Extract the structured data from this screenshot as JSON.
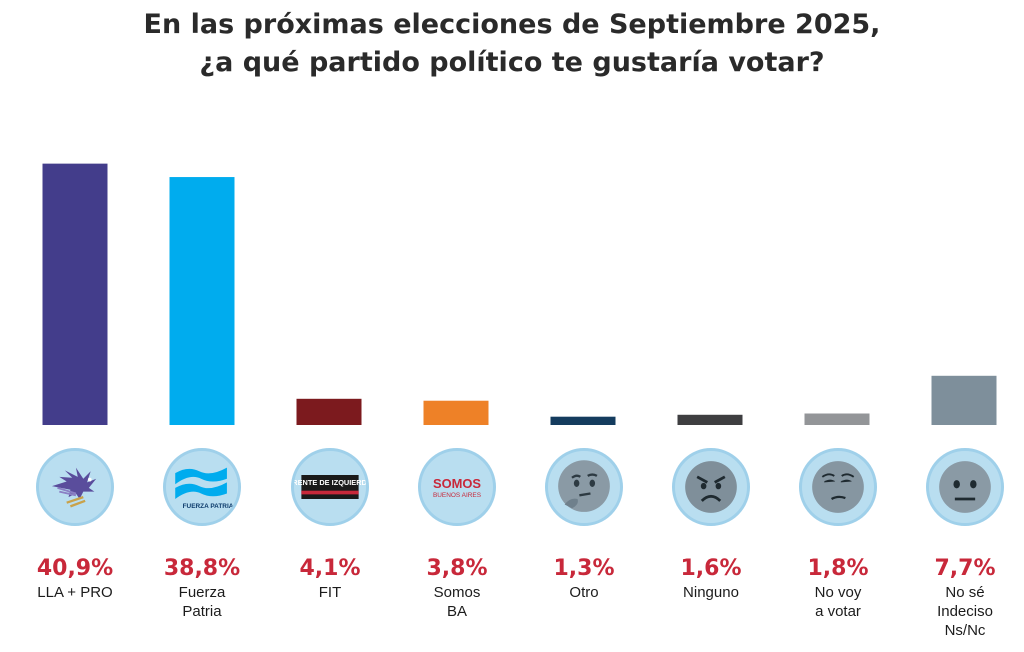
{
  "title_lines": [
    "En las próximas elecciones de Septiembre 2025,",
    "¿a qué partido político te gustaría votar?"
  ],
  "chart_data": {
    "type": "bar",
    "title": "En las próximas elecciones de Septiembre 2025, ¿a qué partido político te gustaría votar?",
    "categories": [
      "LLA + PRO",
      "Fuerza Patria",
      "FIT",
      "Somos BA",
      "Otro",
      "Ninguno",
      "No voy a votar",
      "No sé Indeciso Ns/Nc"
    ],
    "category_labels": [
      "LLA + PRO",
      "Fuerza\nPatria",
      "FIT",
      "Somos\nBA",
      "Otro",
      "Ninguno",
      "No voy\na votar",
      "No sé\nIndeciso\nNs/Nc"
    ],
    "values": [
      40.9,
      38.8,
      4.1,
      3.8,
      1.3,
      1.6,
      1.8,
      7.7
    ],
    "value_labels": [
      "40,9%",
      "38,8%",
      "4,1%",
      "3,8%",
      "1,3%",
      "1,6%",
      "1,8%",
      "7,7%"
    ],
    "colors": [
      "#433d8b",
      "#00acee",
      "#7c1a1e",
      "#ee8127",
      "#143c5e",
      "#3e3e40",
      "#939598",
      "#7e8f9b"
    ],
    "ylim": [
      0,
      41
    ],
    "grid": false,
    "legend": "none"
  },
  "icons": [
    "eagle-logo-icon",
    "fuerza-patria-logo-icon",
    "frente-izquierda-logo-icon",
    "somos-buenos-aires-logo-icon",
    "thinking-face-icon",
    "angry-face-icon",
    "unamused-face-icon",
    "neutral-face-icon"
  ],
  "logo_text": {
    "fuerza_patria": "FUERZA PATRIA",
    "fit": "FRENTE DE IZQUIERDA",
    "somos_top": "SOMOS",
    "somos_bottom": "BUENOS AIRES"
  }
}
